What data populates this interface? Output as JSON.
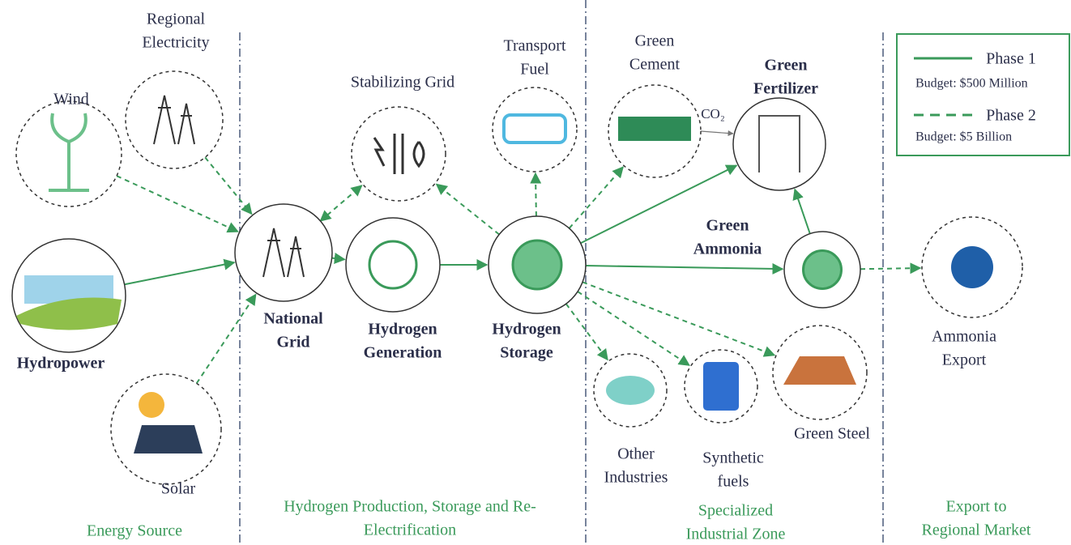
{
  "nodes": [
    {
      "label": [
        "Wind"
      ]
    },
    {
      "label": [
        "Regional",
        "Electricity"
      ]
    },
    {
      "label": [
        "Hydropower"
      ]
    },
    {
      "label": [
        "Solar"
      ]
    },
    {
      "label": [
        "National",
        "Grid"
      ]
    },
    {
      "label": [
        "Stabilizing Grid"
      ]
    },
    {
      "label": [
        "Hydrogen",
        "Generation"
      ]
    },
    {
      "label": [
        "Hydrogen",
        "Storage"
      ]
    },
    {
      "label": [
        "Transport",
        "Fuel"
      ]
    },
    {
      "label": [
        "Green",
        "Cement"
      ]
    },
    {
      "label": [
        "Green",
        "Fertilizer"
      ]
    },
    {
      "label": [
        "Green",
        "Ammonia"
      ]
    },
    {
      "label": [
        "Other",
        "Industries"
      ]
    },
    {
      "label": [
        "Synthetic",
        "fuels"
      ]
    },
    {
      "label": [
        "Green Steel"
      ]
    },
    {
      "label": [
        "Ammonia",
        "Export"
      ]
    }
  ],
  "co2_label": "CO₂",
  "legend": {
    "items": [
      {
        "label": "Phase 1",
        "budget": "Budget: $500 Million"
      },
      {
        "label": "Phase 2",
        "budget": "Budget: $5 Billion"
      }
    ]
  },
  "sections": [
    {
      "label": [
        "Energy Source"
      ]
    },
    {
      "label": [
        "Hydrogen Production, Storage and Re-",
        "Electrification"
      ]
    },
    {
      "label": [
        "Specialized",
        "Industrial Zone"
      ]
    },
    {
      "label": [
        "Export to",
        "Regional Market"
      ]
    }
  ]
}
